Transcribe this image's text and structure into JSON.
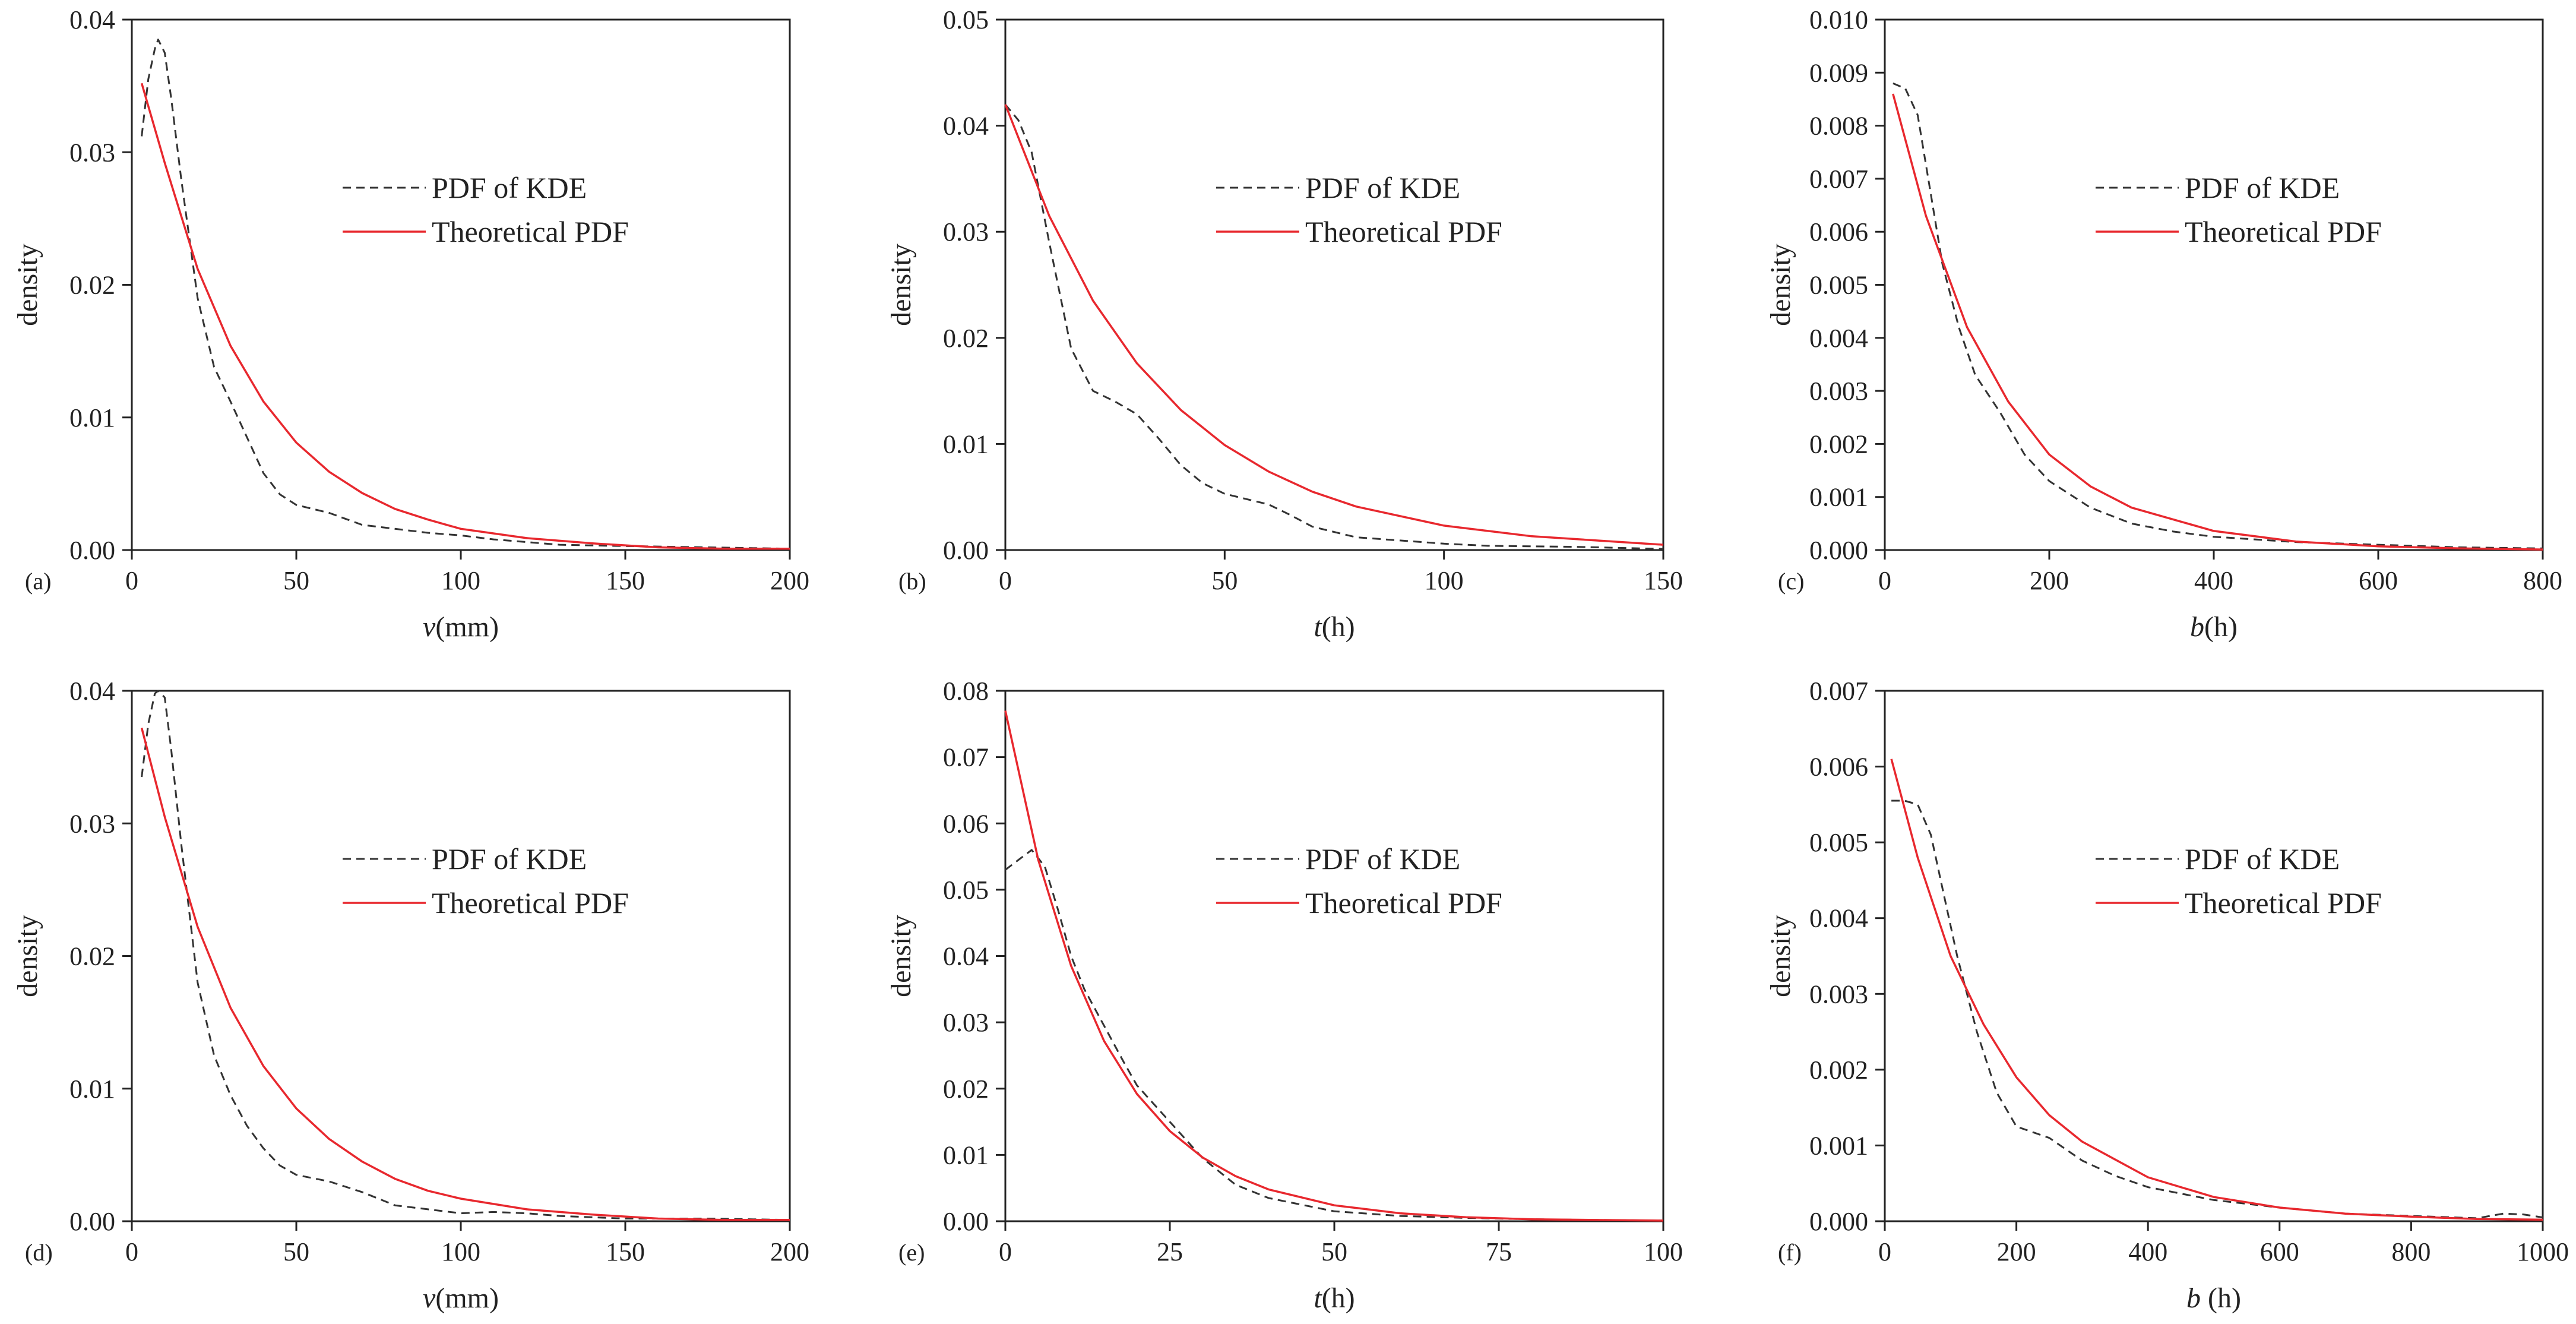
{
  "figure": {
    "legend_kde": "PDF of KDE",
    "legend_theory": "Theoretical PDF"
  },
  "chart_data": [
    {
      "type": "line",
      "panel": "(a)",
      "xlabel_var": "v",
      "xlabel_unit": "(mm)",
      "ylabel": "density",
      "xlim": [
        0,
        200
      ],
      "ylim": [
        0,
        0.04
      ],
      "xticks": [
        0,
        50,
        100,
        150,
        200
      ],
      "xtick_labels": [
        "0",
        "50",
        "100",
        "150",
        "200"
      ],
      "yticks": [
        0,
        0.01,
        0.02,
        0.03,
        0.04
      ],
      "ytick_labels": [
        "0.00",
        "0.01",
        "0.02",
        "0.03",
        "0.04"
      ],
      "legend": "upper-center",
      "series": [
        {
          "name": "PDF of KDE",
          "style": "dashed",
          "color": "#333333",
          "x": [
            3,
            5,
            7,
            8,
            10,
            12,
            15,
            20,
            25,
            30,
            35,
            40,
            45,
            50,
            60,
            70,
            80,
            90,
            100,
            110,
            120,
            130,
            150,
            175,
            200
          ],
          "y": [
            0.0312,
            0.0355,
            0.0378,
            0.0385,
            0.0375,
            0.034,
            0.028,
            0.019,
            0.0138,
            0.0112,
            0.0085,
            0.0058,
            0.0042,
            0.0034,
            0.0028,
            0.0019,
            0.0016,
            0.0013,
            0.0011,
            0.0008,
            0.0006,
            0.0004,
            0.0003,
            0.0002,
            0.0001
          ]
        },
        {
          "name": "Theoretical PDF",
          "style": "solid",
          "color": "#e8282e",
          "x": [
            3,
            10,
            20,
            30,
            40,
            50,
            60,
            70,
            80,
            90,
            100,
            120,
            140,
            160,
            180,
            200
          ],
          "y": [
            0.0352,
            0.0292,
            0.0212,
            0.0154,
            0.0112,
            0.0081,
            0.0059,
            0.0043,
            0.0031,
            0.0023,
            0.0016,
            0.0009,
            0.0005,
            0.0002,
            0.0001,
            0.0001
          ]
        }
      ]
    },
    {
      "type": "line",
      "panel": "(b)",
      "xlabel_var": "t",
      "xlabel_unit": "(h)",
      "ylabel": "density",
      "xlim": [
        0,
        150
      ],
      "ylim": [
        0,
        0.05
      ],
      "xticks": [
        0,
        50,
        100,
        150
      ],
      "xtick_labels": [
        "0",
        "50",
        "100",
        "150"
      ],
      "yticks": [
        0,
        0.01,
        0.02,
        0.03,
        0.04,
        0.05
      ],
      "ytick_labels": [
        "0.00",
        "0.01",
        "0.02",
        "0.03",
        "0.04",
        "0.05"
      ],
      "legend": "upper-center",
      "series": [
        {
          "name": "PDF of KDE",
          "style": "dashed",
          "color": "#333333",
          "x": [
            0,
            3,
            6,
            10,
            15,
            20,
            25,
            30,
            35,
            40,
            45,
            50,
            55,
            60,
            65,
            70,
            80,
            90,
            100,
            110,
            130,
            150
          ],
          "y": [
            0.042,
            0.0405,
            0.0375,
            0.029,
            0.019,
            0.015,
            0.014,
            0.0128,
            0.0105,
            0.008,
            0.0063,
            0.0053,
            0.0048,
            0.0043,
            0.0033,
            0.0022,
            0.0012,
            0.0009,
            0.0006,
            0.0004,
            0.0003,
            0.0001
          ]
        },
        {
          "name": "Theoretical PDF",
          "style": "solid",
          "color": "#e8282e",
          "x": [
            0,
            10,
            20,
            30,
            40,
            50,
            60,
            70,
            80,
            100,
            120,
            150
          ],
          "y": [
            0.042,
            0.0315,
            0.0235,
            0.0176,
            0.0132,
            0.0099,
            0.0074,
            0.0055,
            0.0041,
            0.0023,
            0.0013,
            0.0005
          ]
        }
      ]
    },
    {
      "type": "line",
      "panel": "(c)",
      "xlabel_var": "b",
      "xlabel_unit": "(h)",
      "ylabel": "density",
      "xlim": [
        0,
        800
      ],
      "ylim": [
        0,
        0.01
      ],
      "xticks": [
        0,
        200,
        400,
        600,
        800
      ],
      "xtick_labels": [
        "0",
        "200",
        "400",
        "600",
        "800"
      ],
      "yticks": [
        0,
        0.001,
        0.002,
        0.003,
        0.004,
        0.005,
        0.006,
        0.007,
        0.008,
        0.009,
        0.01
      ],
      "ytick_labels": [
        "0.000",
        "0.001",
        "0.002",
        "0.003",
        "0.004",
        "0.005",
        "0.006",
        "0.007",
        "0.008",
        "0.009",
        "0.010"
      ],
      "legend": "upper-center",
      "series": [
        {
          "name": "PDF of KDE",
          "style": "dashed",
          "color": "#333333",
          "x": [
            10,
            25,
            40,
            55,
            70,
            90,
            110,
            140,
            170,
            200,
            250,
            300,
            350,
            400,
            450,
            500,
            600,
            700,
            800
          ],
          "y": [
            0.0088,
            0.0087,
            0.0082,
            0.0068,
            0.0054,
            0.0042,
            0.0033,
            0.0026,
            0.0018,
            0.0013,
            0.0008,
            0.0005,
            0.00035,
            0.00025,
            0.0002,
            0.00015,
            0.0001,
            5e-05,
            3e-05
          ]
        },
        {
          "name": "Theoretical PDF",
          "style": "solid",
          "color": "#e8282e",
          "x": [
            10,
            50,
            100,
            150,
            200,
            250,
            300,
            400,
            500,
            600,
            700,
            800
          ],
          "y": [
            0.0086,
            0.0063,
            0.0042,
            0.0028,
            0.0018,
            0.0012,
            0.0008,
            0.00036,
            0.00016,
            7e-05,
            3e-05,
            1e-05
          ]
        }
      ]
    },
    {
      "type": "line",
      "panel": "(d)",
      "xlabel_var": "v",
      "xlabel_unit": "(mm)",
      "ylabel": "density",
      "xlim": [
        0,
        200
      ],
      "ylim": [
        0,
        0.04
      ],
      "xticks": [
        0,
        50,
        100,
        150,
        200
      ],
      "xtick_labels": [
        "0",
        "50",
        "100",
        "150",
        "200"
      ],
      "yticks": [
        0,
        0.01,
        0.02,
        0.03,
        0.04
      ],
      "ytick_labels": [
        "0.00",
        "0.01",
        "0.02",
        "0.03",
        "0.04"
      ],
      "legend": "upper-center",
      "series": [
        {
          "name": "PDF of KDE",
          "style": "dashed",
          "color": "#333333",
          "x": [
            3,
            5,
            7,
            8,
            10,
            12,
            15,
            20,
            25,
            30,
            35,
            40,
            45,
            50,
            60,
            70,
            80,
            90,
            100,
            110,
            120,
            130,
            150,
            175,
            200
          ],
          "y": [
            0.0335,
            0.0375,
            0.0398,
            0.04,
            0.0395,
            0.0355,
            0.0285,
            0.018,
            0.0125,
            0.0095,
            0.0072,
            0.0055,
            0.0042,
            0.0035,
            0.003,
            0.0022,
            0.0012,
            0.0009,
            0.0006,
            0.0007,
            0.0006,
            0.0004,
            0.0002,
            0.0002,
            0.0001
          ]
        },
        {
          "name": "Theoretical PDF",
          "style": "solid",
          "color": "#e8282e",
          "x": [
            3,
            10,
            20,
            30,
            40,
            50,
            60,
            70,
            80,
            90,
            100,
            120,
            140,
            160,
            180,
            200
          ],
          "y": [
            0.0372,
            0.0305,
            0.0222,
            0.0161,
            0.0117,
            0.0085,
            0.0062,
            0.0045,
            0.0032,
            0.0023,
            0.0017,
            0.0009,
            0.0005,
            0.0002,
            0.0001,
            0.0001
          ]
        }
      ]
    },
    {
      "type": "line",
      "panel": "(e)",
      "xlabel_var": "t",
      "xlabel_unit": "(h)",
      "ylabel": "density",
      "xlim": [
        0,
        100
      ],
      "ylim": [
        0,
        0.08
      ],
      "xticks": [
        0,
        25,
        50,
        75,
        100
      ],
      "xtick_labels": [
        "0",
        "25",
        "50",
        "75",
        "100"
      ],
      "yticks": [
        0,
        0.01,
        0.02,
        0.03,
        0.04,
        0.05,
        0.06,
        0.07,
        0.08
      ],
      "ytick_labels": [
        "0.00",
        "0.01",
        "0.02",
        "0.03",
        "0.04",
        "0.05",
        "0.06",
        "0.07",
        "0.08"
      ],
      "legend": "upper-center",
      "series": [
        {
          "name": "PDF of KDE",
          "style": "dashed",
          "color": "#333333",
          "x": [
            0,
            2,
            4,
            6,
            8,
            10,
            12,
            15,
            18,
            20,
            25,
            30,
            35,
            40,
            50,
            60,
            70,
            80,
            90,
            100
          ],
          "y": [
            0.053,
            0.0545,
            0.056,
            0.0535,
            0.047,
            0.04,
            0.035,
            0.0295,
            0.024,
            0.0205,
            0.015,
            0.0095,
            0.0055,
            0.0035,
            0.0015,
            0.0008,
            0.0005,
            0.0003,
            0.0002,
            0.0001
          ]
        },
        {
          "name": "Theoretical PDF",
          "style": "solid",
          "color": "#e8282e",
          "x": [
            0,
            5,
            10,
            15,
            20,
            25,
            30,
            35,
            40,
            50,
            60,
            70,
            80,
            100
          ],
          "y": [
            0.077,
            0.0545,
            0.0385,
            0.0272,
            0.0192,
            0.0136,
            0.0096,
            0.0068,
            0.0048,
            0.0024,
            0.0012,
            0.0006,
            0.0003,
            0.0001
          ]
        }
      ]
    },
    {
      "type": "line",
      "panel": "(f)",
      "xlabel_var": "b",
      "xlabel_unit": " (h)",
      "ylabel": "density",
      "xlim": [
        0,
        1000
      ],
      "ylim": [
        0,
        0.007
      ],
      "xticks": [
        0,
        200,
        400,
        600,
        800,
        1000
      ],
      "xtick_labels": [
        "0",
        "200",
        "400",
        "600",
        "800",
        "1000"
      ],
      "yticks": [
        0,
        0.001,
        0.002,
        0.003,
        0.004,
        0.005,
        0.006,
        0.007
      ],
      "ytick_labels": [
        "0.000",
        "0.001",
        "0.002",
        "0.003",
        "0.004",
        "0.005",
        "0.006",
        "0.007"
      ],
      "legend": "upper-center",
      "series": [
        {
          "name": "PDF of KDE",
          "style": "dashed",
          "color": "#333333",
          "x": [
            10,
            30,
            50,
            70,
            90,
            110,
            140,
            170,
            200,
            250,
            300,
            350,
            400,
            500,
            600,
            700,
            800,
            900,
            940,
            970,
            1000
          ],
          "y": [
            0.00555,
            0.00555,
            0.0055,
            0.0051,
            0.0043,
            0.0035,
            0.0025,
            0.0017,
            0.00125,
            0.0011,
            0.0008,
            0.0006,
            0.00045,
            0.00028,
            0.00018,
            0.0001,
            7e-05,
            4e-05,
            0.0001,
            9e-05,
            5e-05
          ]
        },
        {
          "name": "Theoretical PDF",
          "style": "solid",
          "color": "#e8282e",
          "x": [
            10,
            50,
            100,
            150,
            200,
            250,
            300,
            400,
            500,
            600,
            700,
            800,
            900,
            1000
          ],
          "y": [
            0.0061,
            0.0048,
            0.0035,
            0.0026,
            0.0019,
            0.0014,
            0.00105,
            0.00058,
            0.00032,
            0.00018,
            0.0001,
            6e-05,
            3e-05,
            2e-05
          ]
        }
      ]
    }
  ]
}
